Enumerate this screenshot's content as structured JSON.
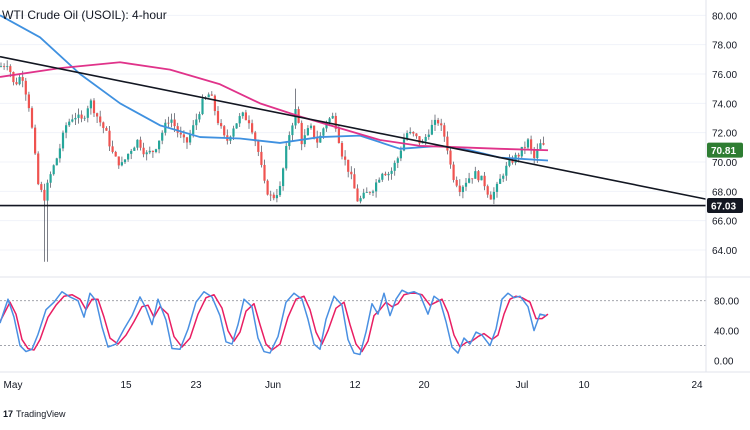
{
  "title": "WTI Crude Oil (USOIL): 4-hour",
  "branding": {
    "logo": "17",
    "name": "TradingView"
  },
  "colors": {
    "bull_candle": "#26a69a",
    "bear_candle": "#ef5350",
    "candle_wick": "#5d606b",
    "sma_fast": "#3f91e0",
    "sma_slow": "#e0338a",
    "trendline": "#131722",
    "stoch_k": "#4a90e2",
    "stoch_d": "#e91e63",
    "last_price_badge": "#2e7d32",
    "support_badge": "#131722"
  },
  "chart_data": [
    {
      "type": "candlestick",
      "symbol": "USOIL",
      "timeframe": "4-hour",
      "y_ticks": [
        "80.00",
        "78.00",
        "76.00",
        "74.00",
        "72.00",
        "70.00",
        "68.00",
        "66.00",
        "64.00"
      ],
      "ylim": [
        62.5,
        80.5
      ],
      "x_ticks": [
        "May",
        "15",
        "23",
        "Jun",
        "12",
        "20",
        "Jul",
        "10",
        "24"
      ],
      "price_path": [
        [
          0,
          76.5
        ],
        [
          8,
          76.8
        ],
        [
          14,
          75.2
        ],
        [
          22,
          76.0
        ],
        [
          30,
          73.5
        ],
        [
          38,
          68.5
        ],
        [
          44,
          67.5
        ],
        [
          50,
          69.0
        ],
        [
          58,
          70.5
        ],
        [
          66,
          72.5
        ],
        [
          74,
          73.2
        ],
        [
          82,
          72.8
        ],
        [
          90,
          74.2
        ],
        [
          98,
          73.0
        ],
        [
          106,
          72.0
        ],
        [
          114,
          70.3
        ],
        [
          122,
          69.8
        ],
        [
          130,
          70.8
        ],
        [
          138,
          71.5
        ],
        [
          146,
          70.5
        ],
        [
          154,
          70.8
        ],
        [
          162,
          72.0
        ],
        [
          170,
          73.1
        ],
        [
          178,
          72.0
        ],
        [
          186,
          71.2
        ],
        [
          194,
          72.5
        ],
        [
          202,
          74.0
        ],
        [
          210,
          74.7
        ],
        [
          218,
          72.8
        ],
        [
          226,
          71.3
        ],
        [
          234,
          72.5
        ],
        [
          242,
          73.2
        ],
        [
          250,
          72.8
        ],
        [
          258,
          70.8
        ],
        [
          265,
          68.3
        ],
        [
          272,
          67.5
        ],
        [
          280,
          68.2
        ],
        [
          288,
          71.6
        ],
        [
          296,
          73.6
        ],
        [
          302,
          71.3
        ],
        [
          310,
          72.4
        ],
        [
          318,
          71.3
        ],
        [
          326,
          72.8
        ],
        [
          334,
          73.1
        ],
        [
          342,
          70.6
        ],
        [
          350,
          69.2
        ],
        [
          358,
          67.3
        ],
        [
          366,
          67.8
        ],
        [
          374,
          68.3
        ],
        [
          382,
          69.4
        ],
        [
          390,
          69.2
        ],
        [
          398,
          70.3
        ],
        [
          406,
          72.0
        ],
        [
          414,
          71.8
        ],
        [
          422,
          71.2
        ],
        [
          430,
          72.3
        ],
        [
          438,
          72.8
        ],
        [
          446,
          71.5
        ],
        [
          452,
          69.2
        ],
        [
          460,
          68.2
        ],
        [
          468,
          68.9
        ],
        [
          476,
          69.2
        ],
        [
          484,
          68.6
        ],
        [
          490,
          67.6
        ],
        [
          496,
          68.1
        ],
        [
          504,
          69.4
        ],
        [
          512,
          70.1
        ],
        [
          520,
          70.6
        ],
        [
          528,
          71.4
        ],
        [
          534,
          70.2
        ],
        [
          540,
          71.2
        ],
        [
          546,
          70.9
        ]
      ],
      "sma_fast": [
        [
          0,
          80.0
        ],
        [
          40,
          78.5
        ],
        [
          80,
          76.0
        ],
        [
          120,
          74.0
        ],
        [
          160,
          72.5
        ],
        [
          200,
          71.7
        ],
        [
          240,
          71.6
        ],
        [
          280,
          71.3
        ],
        [
          320,
          71.7
        ],
        [
          360,
          71.8
        ],
        [
          400,
          70.9
        ],
        [
          440,
          71.1
        ],
        [
          470,
          70.8
        ],
        [
          500,
          70.3
        ],
        [
          548,
          70.1
        ]
      ],
      "sma_slow": [
        [
          0,
          75.8
        ],
        [
          60,
          76.4
        ],
        [
          120,
          76.8
        ],
        [
          170,
          76.3
        ],
        [
          220,
          75.3
        ],
        [
          260,
          74.0
        ],
        [
          300,
          73.1
        ],
        [
          340,
          72.3
        ],
        [
          380,
          71.5
        ],
        [
          420,
          71.1
        ],
        [
          460,
          71.0
        ],
        [
          500,
          70.9
        ],
        [
          548,
          70.8
        ]
      ],
      "trendline": {
        "from": [
          "May",
          77.0
        ],
        "to": [
          "Jul",
          70.0
        ]
      },
      "support_level": 67.03,
      "last_price": 70.81
    },
    {
      "type": "line",
      "name": "Stochastic",
      "y_ticks": [
        "80.00",
        "40.00",
        "0.00"
      ],
      "ylim": [
        -10,
        105
      ],
      "levels": [
        80,
        20
      ],
      "k_line": [
        [
          0,
          50
        ],
        [
          8,
          82
        ],
        [
          14,
          58
        ],
        [
          20,
          20
        ],
        [
          26,
          12
        ],
        [
          32,
          15
        ],
        [
          38,
          35
        ],
        [
          46,
          68
        ],
        [
          54,
          78
        ],
        [
          62,
          92
        ],
        [
          70,
          85
        ],
        [
          78,
          80
        ],
        [
          84,
          58
        ],
        [
          90,
          90
        ],
        [
          96,
          80
        ],
        [
          102,
          45
        ],
        [
          108,
          18
        ],
        [
          116,
          22
        ],
        [
          124,
          42
        ],
        [
          132,
          60
        ],
        [
          140,
          85
        ],
        [
          146,
          70
        ],
        [
          152,
          48
        ],
        [
          158,
          82
        ],
        [
          166,
          54
        ],
        [
          172,
          16
        ],
        [
          180,
          15
        ],
        [
          188,
          42
        ],
        [
          196,
          78
        ],
        [
          204,
          92
        ],
        [
          212,
          85
        ],
        [
          220,
          60
        ],
        [
          226,
          25
        ],
        [
          232,
          22
        ],
        [
          238,
          48
        ],
        [
          244,
          82
        ],
        [
          252,
          72
        ],
        [
          258,
          30
        ],
        [
          264,
          12
        ],
        [
          270,
          10
        ],
        [
          278,
          32
        ],
        [
          286,
          78
        ],
        [
          294,
          90
        ],
        [
          302,
          82
        ],
        [
          308,
          55
        ],
        [
          314,
          22
        ],
        [
          320,
          15
        ],
        [
          326,
          55
        ],
        [
          334,
          86
        ],
        [
          342,
          74
        ],
        [
          348,
          28
        ],
        [
          354,
          10
        ],
        [
          360,
          8
        ],
        [
          366,
          38
        ],
        [
          372,
          76
        ],
        [
          378,
          62
        ],
        [
          384,
          90
        ],
        [
          390,
          60
        ],
        [
          396,
          82
        ],
        [
          402,
          94
        ],
        [
          408,
          90
        ],
        [
          414,
          92
        ],
        [
          420,
          88
        ],
        [
          428,
          62
        ],
        [
          434,
          86
        ],
        [
          440,
          80
        ],
        [
          446,
          52
        ],
        [
          452,
          18
        ],
        [
          458,
          10
        ],
        [
          464,
          30
        ],
        [
          470,
          22
        ],
        [
          476,
          38
        ],
        [
          482,
          34
        ],
        [
          490,
          20
        ],
        [
          496,
          42
        ],
        [
          502,
          82
        ],
        [
          508,
          90
        ],
        [
          514,
          84
        ],
        [
          520,
          86
        ],
        [
          528,
          72
        ],
        [
          534,
          40
        ],
        [
          540,
          62
        ],
        [
          546,
          60
        ]
      ],
      "d_line": [
        [
          0,
          52
        ],
        [
          10,
          78
        ],
        [
          16,
          62
        ],
        [
          22,
          28
        ],
        [
          28,
          16
        ],
        [
          34,
          14
        ],
        [
          40,
          28
        ],
        [
          48,
          58
        ],
        [
          56,
          74
        ],
        [
          64,
          86
        ],
        [
          72,
          88
        ],
        [
          80,
          82
        ],
        [
          86,
          68
        ],
        [
          92,
          82
        ],
        [
          98,
          82
        ],
        [
          104,
          58
        ],
        [
          110,
          30
        ],
        [
          118,
          22
        ],
        [
          126,
          34
        ],
        [
          134,
          52
        ],
        [
          142,
          72
        ],
        [
          148,
          74
        ],
        [
          154,
          58
        ],
        [
          160,
          72
        ],
        [
          168,
          62
        ],
        [
          174,
          32
        ],
        [
          182,
          18
        ],
        [
          190,
          30
        ],
        [
          198,
          62
        ],
        [
          206,
          84
        ],
        [
          214,
          88
        ],
        [
          222,
          70
        ],
        [
          228,
          40
        ],
        [
          234,
          26
        ],
        [
          240,
          38
        ],
        [
          246,
          66
        ],
        [
          254,
          76
        ],
        [
          260,
          48
        ],
        [
          266,
          22
        ],
        [
          272,
          14
        ],
        [
          280,
          22
        ],
        [
          288,
          58
        ],
        [
          296,
          82
        ],
        [
          304,
          86
        ],
        [
          310,
          68
        ],
        [
          316,
          38
        ],
        [
          322,
          22
        ],
        [
          328,
          40
        ],
        [
          336,
          70
        ],
        [
          344,
          78
        ],
        [
          350,
          48
        ],
        [
          356,
          22
        ],
        [
          362,
          12
        ],
        [
          368,
          26
        ],
        [
          374,
          60
        ],
        [
          380,
          68
        ],
        [
          386,
          78
        ],
        [
          392,
          72
        ],
        [
          398,
          76
        ],
        [
          404,
          88
        ],
        [
          410,
          90
        ],
        [
          416,
          90
        ],
        [
          422,
          88
        ],
        [
          430,
          74
        ],
        [
          436,
          78
        ],
        [
          442,
          82
        ],
        [
          448,
          64
        ],
        [
          454,
          34
        ],
        [
          460,
          18
        ],
        [
          466,
          24
        ],
        [
          472,
          26
        ],
        [
          478,
          32
        ],
        [
          484,
          36
        ],
        [
          492,
          28
        ],
        [
          498,
          34
        ],
        [
          504,
          62
        ],
        [
          510,
          82
        ],
        [
          516,
          86
        ],
        [
          522,
          84
        ],
        [
          530,
          78
        ],
        [
          536,
          56
        ],
        [
          542,
          56
        ],
        [
          548,
          62
        ]
      ]
    }
  ]
}
